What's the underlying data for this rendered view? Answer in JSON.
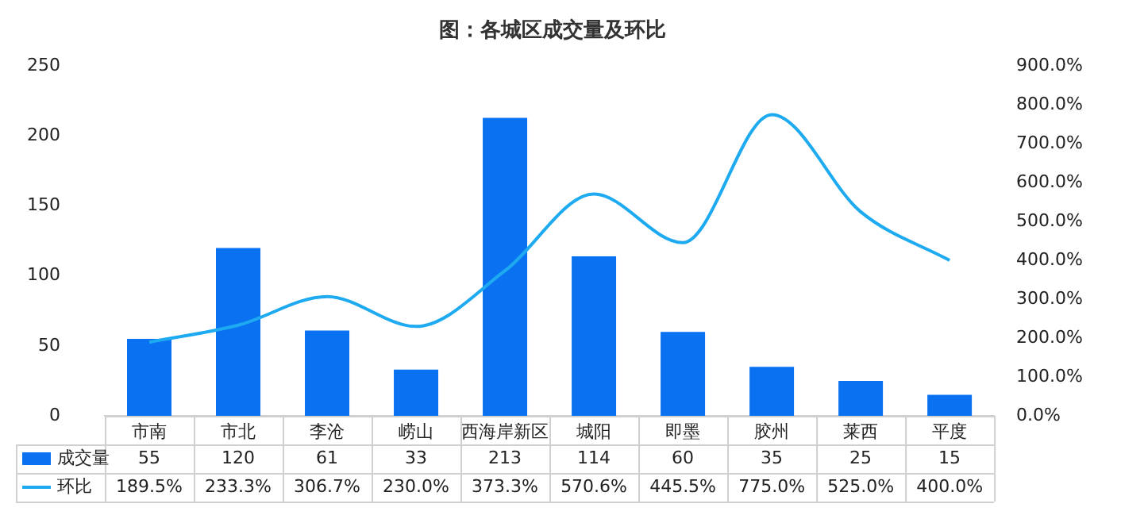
{
  "chart_data": {
    "type": "bar",
    "title": "图：各城区成交量及环比",
    "categories": [
      "市南",
      "市北",
      "李沧",
      "崂山",
      "西海岸新区",
      "城阳",
      "即墨",
      "胶州",
      "莱西",
      "平度"
    ],
    "series": [
      {
        "name": "成交量",
        "color": "#0a72f0",
        "values": [
          55,
          120,
          61,
          33,
          213,
          114,
          60,
          35,
          25,
          15
        ],
        "value_labels": [
          "55",
          "120",
          "61",
          "33",
          "213",
          "114",
          "60",
          "35",
          "25",
          "15"
        ]
      },
      {
        "name": "环比",
        "type": "line",
        "axis": "y2",
        "color": "#1eaaf0",
        "values": [
          189.5,
          233.3,
          306.7,
          230.0,
          373.3,
          570.6,
          445.5,
          775.0,
          525.0,
          400.0
        ],
        "value_labels": [
          "189.5%",
          "233.3%",
          "306.7%",
          "230.0%",
          "373.3%",
          "570.6%",
          "445.5%",
          "775.0%",
          "525.0%",
          "400.0%"
        ]
      }
    ],
    "ylim": [
      0,
      250
    ],
    "yticks": [
      0,
      50,
      100,
      150,
      200,
      250
    ],
    "y2lim": [
      0,
      900
    ],
    "y2ticks": [
      {
        "value": 0,
        "label": "0.0%"
      },
      {
        "value": 100,
        "label": "100.0%"
      },
      {
        "value": 200,
        "label": "200.0%"
      },
      {
        "value": 300,
        "label": "300.0%"
      },
      {
        "value": 400,
        "label": "400.0%"
      },
      {
        "value": 500,
        "label": "500.0%"
      },
      {
        "value": 600,
        "label": "600.0%"
      },
      {
        "value": 700,
        "label": "700.0%"
      },
      {
        "value": 800,
        "label": "800.0%"
      },
      {
        "value": 900,
        "label": "900.0%"
      }
    ],
    "legend": "bottom left",
    "marker": "none"
  }
}
